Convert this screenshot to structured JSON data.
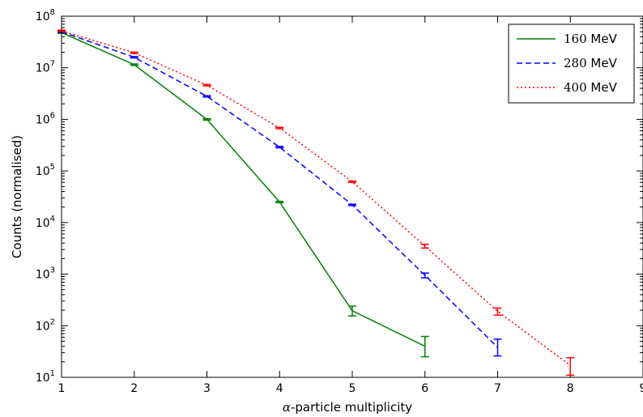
{
  "chart_data": {
    "type": "line",
    "title": "",
    "xlabel_symbol": "α",
    "xlabel_rest": "-particle multiplicity",
    "ylabel": "Counts (normalised)",
    "yscale": "log",
    "xlim": [
      1,
      9
    ],
    "ylim": [
      10,
      100000000
    ],
    "grid": false,
    "legend_position": "top-right",
    "x_ticks": [
      "1",
      "2",
      "3",
      "4",
      "5",
      "6",
      "7",
      "8",
      "9"
    ],
    "y_ticks": [
      {
        "base": "10",
        "exp": "1",
        "value": 10
      },
      {
        "base": "10",
        "exp": "2",
        "value": 100
      },
      {
        "base": "10",
        "exp": "3",
        "value": 1000
      },
      {
        "base": "10",
        "exp": "4",
        "value": 10000
      },
      {
        "base": "10",
        "exp": "5",
        "value": 100000
      },
      {
        "base": "10",
        "exp": "6",
        "value": 1000000
      },
      {
        "base": "10",
        "exp": "7",
        "value": 10000000
      },
      {
        "base": "10",
        "exp": "8",
        "value": 100000000
      }
    ],
    "series": [
      {
        "name_number": "160",
        "name_unit": " MeV",
        "color": "#008000",
        "style": "solid",
        "x": [
          1,
          2,
          3,
          4,
          5,
          6
        ],
        "y": [
          48000000,
          11500000,
          1000000,
          25000,
          195,
          40
        ],
        "err_low": [
          0,
          0,
          0,
          0,
          155,
          25
        ],
        "err_high": [
          0,
          0,
          0,
          0,
          240,
          62
        ]
      },
      {
        "name_number": "280",
        "name_unit": " MeV",
        "color": "#0000ff",
        "style": "dashed",
        "x": [
          1,
          2,
          3,
          4,
          5,
          6,
          7
        ],
        "y": [
          50000000,
          16000000,
          2800000,
          290000,
          22000,
          950,
          38
        ],
        "err_low": [
          0,
          0,
          0,
          0,
          0,
          850,
          26
        ],
        "err_high": [
          0,
          0,
          0,
          0,
          0,
          1050,
          55
        ]
      },
      {
        "name_number": "400",
        "name_unit": " MeV",
        "color": "#ff0000",
        "style": "dotted",
        "x": [
          1,
          2,
          3,
          4,
          5,
          6,
          7,
          8
        ],
        "y": [
          52000000,
          19500000,
          4600000,
          680000,
          62000,
          3500,
          190,
          17
        ],
        "err_low": [
          0,
          0,
          0,
          0,
          0,
          3200,
          160,
          11
        ],
        "err_high": [
          0,
          0,
          0,
          0,
          0,
          3800,
          220,
          24
        ]
      }
    ]
  }
}
